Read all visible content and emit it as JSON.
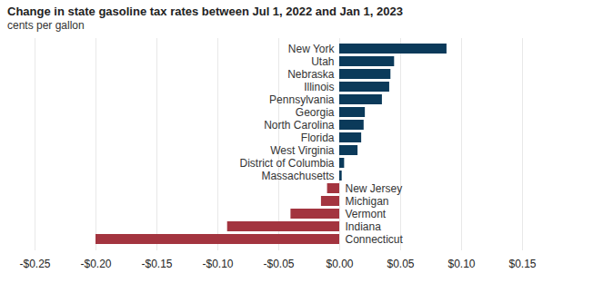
{
  "chart_data": {
    "type": "bar",
    "orientation": "horizontal",
    "title": "Change in state gasoline tax rates between Jul 1, 2022 and Jan 1, 2023",
    "subtitle": "cents per gallon",
    "categories": [
      "New York",
      "Utah",
      "Nebraska",
      "Illinois",
      "Pennsylvania",
      "Georgia",
      "North Carolina",
      "Florida",
      "West Virginia",
      "District of Columbia",
      "Massachusetts",
      "New Jersey",
      "Michigan",
      "Vermont",
      "Indiana",
      "Connecticut"
    ],
    "values": [
      0.088,
      0.045,
      0.042,
      0.041,
      0.035,
      0.021,
      0.02,
      0.018,
      0.015,
      0.004,
      0.002,
      -0.01,
      -0.015,
      -0.04,
      -0.092,
      -0.2
    ],
    "colors": [
      "#0b3a5a",
      "#0b3a5a",
      "#0b3a5a",
      "#0b3a5a",
      "#0b3a5a",
      "#0b3a5a",
      "#0b3a5a",
      "#0b3a5a",
      "#0b3a5a",
      "#0b3a5a",
      "#0b3a5a",
      "#a3343f",
      "#a3343f",
      "#a3343f",
      "#a3343f",
      "#a3343f"
    ],
    "xlim": [
      -0.25,
      0.15
    ],
    "xticks": [
      {
        "value": -0.25,
        "label": "-$0.25"
      },
      {
        "value": -0.2,
        "label": "-$0.20"
      },
      {
        "value": -0.15,
        "label": "-$0.15"
      },
      {
        "value": -0.1,
        "label": "-$0.10"
      },
      {
        "value": -0.05,
        "label": "-$0.05"
      },
      {
        "value": 0,
        "label": "$0.00"
      },
      {
        "value": 0.05,
        "label": "$0.05"
      },
      {
        "value": 0.1,
        "label": "$0.10"
      },
      {
        "value": 0.15,
        "label": "$0.15"
      }
    ],
    "grid": true,
    "tick_labels": "x"
  }
}
